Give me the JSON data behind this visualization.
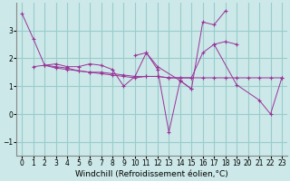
{
  "bg_color": "#cce8e8",
  "grid_color": "#99cccc",
  "line_color": "#993399",
  "xlabel": "Windchill (Refroidissement éolien,°C)",
  "xlabel_fontsize": 6.5,
  "tick_fontsize": 5.5,
  "ylim": [
    -1.5,
    4.0
  ],
  "xlim": [
    -0.5,
    23.5
  ],
  "yticks": [
    -1,
    0,
    1,
    2,
    3
  ],
  "xticks": [
    0,
    1,
    2,
    3,
    4,
    5,
    6,
    7,
    8,
    9,
    10,
    11,
    12,
    13,
    14,
    15,
    16,
    17,
    18,
    19,
    20,
    21,
    22,
    23
  ],
  "series": [
    {
      "x": [
        0,
        1,
        2,
        3,
        4,
        5,
        6,
        7,
        8,
        9,
        10,
        11,
        12,
        13,
        14,
        15,
        16,
        17,
        18,
        19,
        20,
        21,
        22,
        23
      ],
      "y": [
        3.6,
        2.7,
        1.75,
        1.7,
        1.65,
        1.55,
        1.5,
        1.5,
        1.45,
        1.4,
        1.35,
        1.35,
        1.35,
        1.3,
        1.3,
        1.3,
        1.3,
        1.3,
        1.3,
        1.3,
        1.3,
        1.3,
        1.3,
        1.3
      ]
    },
    {
      "x": [
        1,
        2,
        3,
        4,
        5,
        6,
        7,
        8,
        9,
        10,
        11,
        12,
        14,
        15
      ],
      "y": [
        1.7,
        1.75,
        1.8,
        1.7,
        1.7,
        1.8,
        1.75,
        1.6,
        1.0,
        1.35,
        2.2,
        1.7,
        1.2,
        0.9
      ]
    },
    {
      "x": [
        2,
        3,
        4,
        5,
        6,
        7,
        8,
        9,
        10,
        11,
        12,
        13,
        14,
        15,
        16,
        17,
        18,
        19
      ],
      "y": [
        1.75,
        1.65,
        1.6,
        1.55,
        1.5,
        1.45,
        1.4,
        1.35,
        1.3,
        1.35,
        1.35,
        1.3,
        1.3,
        1.3,
        2.2,
        2.5,
        2.6,
        2.5
      ]
    },
    {
      "x": [
        10,
        11,
        12,
        13,
        14,
        15,
        16,
        17,
        18
      ],
      "y": [
        2.1,
        2.2,
        1.6,
        -0.65,
        1.2,
        0.9,
        3.3,
        3.2,
        3.7
      ]
    },
    {
      "x": [
        17,
        19,
        21,
        22,
        23
      ],
      "y": [
        2.5,
        1.05,
        0.5,
        0.0,
        1.3
      ]
    }
  ]
}
